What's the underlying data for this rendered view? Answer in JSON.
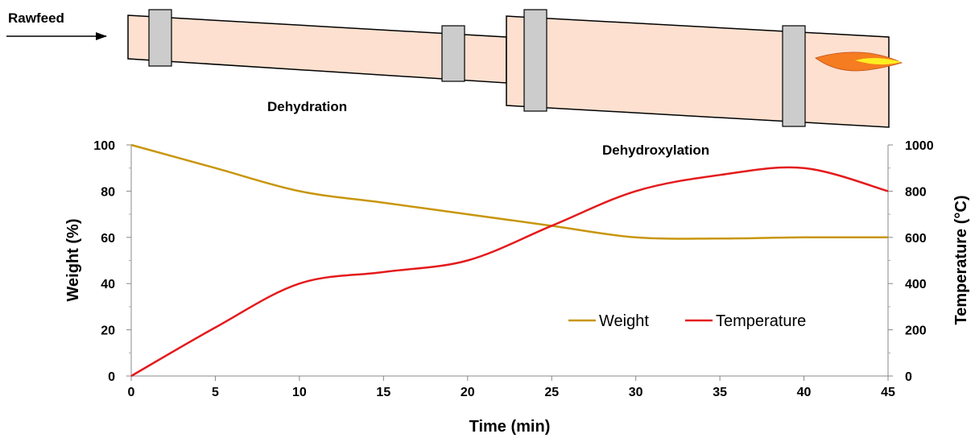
{
  "diagram": {
    "input_label": "Rawfeed",
    "stage_labels": [
      "Dehydration",
      "Dehydroxylation"
    ],
    "colors": {
      "kiln_fill": "#fde0d0",
      "ring_fill": "#cccccc",
      "flame_outer": "#f57c20",
      "flame_inner": "#ffee22"
    }
  },
  "chart_data": {
    "type": "line",
    "x": [
      0,
      5,
      10,
      15,
      20,
      25,
      30,
      35,
      40,
      45
    ],
    "series": [
      {
        "name": "Weight",
        "axis": "left",
        "color": "#c8960c",
        "values": [
          100,
          90,
          80,
          75,
          70,
          65,
          60,
          59.5,
          60,
          60
        ]
      },
      {
        "name": "Temperature",
        "axis": "right",
        "color": "#e41a1c",
        "values": [
          0,
          210,
          400,
          450,
          500,
          650,
          800,
          870,
          900,
          800
        ]
      }
    ],
    "xlabel": "Time (min)",
    "ylabel": "Weight (%)",
    "y2label": "Temperature (°C)",
    "xlim": [
      0,
      45
    ],
    "ylim": [
      0,
      100
    ],
    "y2lim": [
      0,
      1000
    ],
    "xticks": [
      "0",
      "5",
      "10",
      "15",
      "20",
      "25",
      "30",
      "35",
      "40",
      "45"
    ],
    "yticks": [
      "0",
      "20",
      "40",
      "60",
      "80",
      "100"
    ],
    "y2ticks": [
      "0",
      "200",
      "400",
      "600",
      "800",
      "1000"
    ],
    "grid": false,
    "legend": "lower-right"
  }
}
